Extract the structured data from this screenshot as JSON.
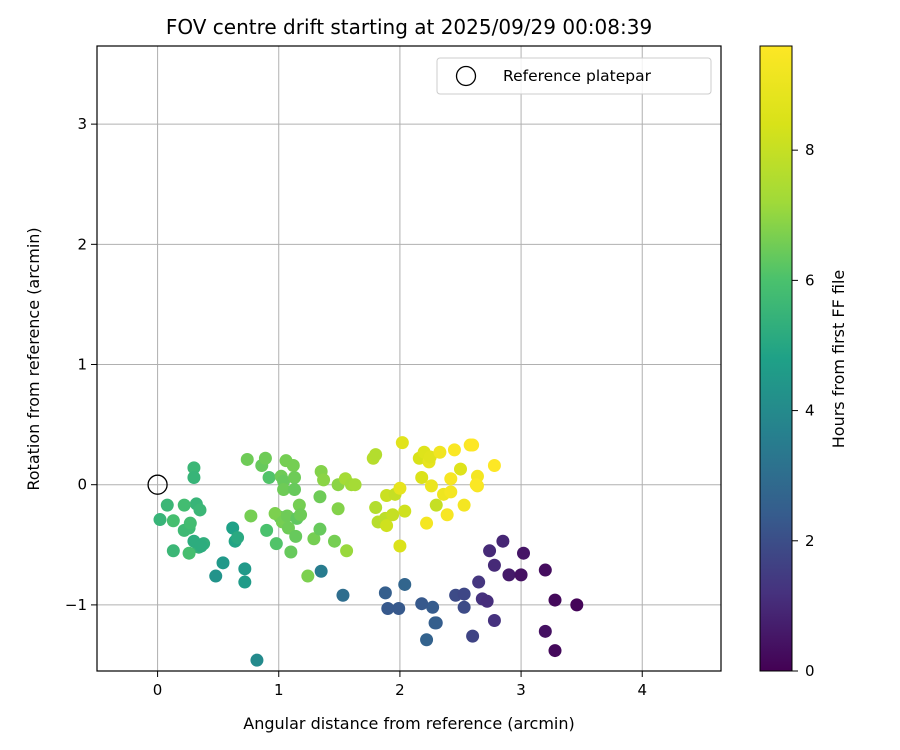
{
  "chart_data": {
    "type": "scatter",
    "title": "FOV centre drift starting at 2025/09/29 00:08:39",
    "xlabel": "Angular distance from reference (arcmin)",
    "ylabel": "Rotation from reference (arcmin)",
    "xlim": [
      -0.5,
      4.65
    ],
    "ylim": [
      -1.55,
      3.65
    ],
    "xticks": [
      0,
      1,
      2,
      3,
      4
    ],
    "yticks": [
      -1,
      0,
      1,
      2,
      3
    ],
    "xtick_labels": [
      "0",
      "1",
      "2",
      "3",
      "4"
    ],
    "ytick_labels": [
      "−1",
      "0",
      "1",
      "2",
      "3"
    ],
    "grid": true,
    "legend": {
      "position": "top-right",
      "entries": [
        "Reference platepar"
      ]
    },
    "reference_point": {
      "x": 0,
      "y": 0,
      "label": "Reference platepar"
    },
    "colorbar": {
      "label": "Hours from first FF file",
      "colormap": "viridis",
      "range": [
        0,
        9.6
      ],
      "ticks": [
        0,
        2,
        4,
        6,
        8
      ],
      "tick_labels": [
        "0",
        "2",
        "4",
        "6",
        "8"
      ]
    },
    "series": [
      {
        "color_by": "Hours from first FF file",
        "points": [
          {
            "x": 2.85,
            "y": -0.47,
            "c": 0.9
          },
          {
            "x": 2.74,
            "y": -0.55,
            "c": 1.0
          },
          {
            "x": 3.02,
            "y": -0.57,
            "c": 0.5
          },
          {
            "x": 2.78,
            "y": -0.67,
            "c": 1.0
          },
          {
            "x": 2.9,
            "y": -0.75,
            "c": 0.6
          },
          {
            "x": 3.0,
            "y": -0.75,
            "c": 0.4
          },
          {
            "x": 3.2,
            "y": -0.71,
            "c": 0.3
          },
          {
            "x": 2.65,
            "y": -0.81,
            "c": 1.3
          },
          {
            "x": 2.68,
            "y": -0.95,
            "c": 1.2
          },
          {
            "x": 2.72,
            "y": -0.97,
            "c": 1.1
          },
          {
            "x": 3.28,
            "y": -0.96,
            "c": 0.2
          },
          {
            "x": 3.46,
            "y": -1.0,
            "c": 0.1
          },
          {
            "x": 2.78,
            "y": -1.13,
            "c": 1.2
          },
          {
            "x": 3.2,
            "y": -1.22,
            "c": 0.4
          },
          {
            "x": 3.28,
            "y": -1.38,
            "c": 0.2
          },
          {
            "x": 2.6,
            "y": -1.26,
            "c": 1.7
          },
          {
            "x": 2.46,
            "y": -0.92,
            "c": 1.9
          },
          {
            "x": 2.53,
            "y": -0.91,
            "c": 1.8
          },
          {
            "x": 2.53,
            "y": -1.02,
            "c": 1.9
          },
          {
            "x": 2.3,
            "y": -1.15,
            "c": 2.4
          },
          {
            "x": 2.29,
            "y": -1.15,
            "c": 2.5
          },
          {
            "x": 2.27,
            "y": -1.02,
            "c": 2.4
          },
          {
            "x": 2.18,
            "y": -0.99,
            "c": 2.3
          },
          {
            "x": 2.22,
            "y": -1.29,
            "c": 2.6
          },
          {
            "x": 1.99,
            "y": -1.03,
            "c": 2.3
          },
          {
            "x": 1.9,
            "y": -1.03,
            "c": 2.3
          },
          {
            "x": 1.88,
            "y": -0.9,
            "c": 2.5
          },
          {
            "x": 2.04,
            "y": -0.83,
            "c": 2.7
          },
          {
            "x": 1.53,
            "y": -0.92,
            "c": 3.0
          },
          {
            "x": 1.35,
            "y": -0.72,
            "c": 3.5
          },
          {
            "x": 0.82,
            "y": -1.46,
            "c": 4.0
          },
          {
            "x": 0.72,
            "y": -0.7,
            "c": 4.5
          },
          {
            "x": 0.72,
            "y": -0.81,
            "c": 4.6
          },
          {
            "x": 0.64,
            "y": -0.47,
            "c": 4.9
          },
          {
            "x": 0.62,
            "y": -0.36,
            "c": 4.8
          },
          {
            "x": 0.54,
            "y": -0.65,
            "c": 4.5
          },
          {
            "x": 0.48,
            "y": -0.76,
            "c": 4.3
          },
          {
            "x": 0.66,
            "y": -0.44,
            "c": 5.1
          },
          {
            "x": 0.38,
            "y": -0.49,
            "c": 5.3
          },
          {
            "x": 0.34,
            "y": -0.52,
            "c": 5.4
          },
          {
            "x": 0.3,
            "y": -0.47,
            "c": 5.2
          },
          {
            "x": 0.32,
            "y": -0.16,
            "c": 5.5
          },
          {
            "x": 0.35,
            "y": -0.21,
            "c": 5.6
          },
          {
            "x": 0.3,
            "y": 0.14,
            "c": 5.6
          },
          {
            "x": 0.3,
            "y": 0.06,
            "c": 5.5
          },
          {
            "x": 0.22,
            "y": -0.17,
            "c": 5.8
          },
          {
            "x": 0.26,
            "y": -0.36,
            "c": 5.7
          },
          {
            "x": 0.22,
            "y": -0.38,
            "c": 5.7
          },
          {
            "x": 0.27,
            "y": -0.32,
            "c": 5.8
          },
          {
            "x": 0.13,
            "y": -0.3,
            "c": 5.9
          },
          {
            "x": 0.08,
            "y": -0.17,
            "c": 5.6
          },
          {
            "x": 0.02,
            "y": -0.29,
            "c": 5.5
          },
          {
            "x": 0.13,
            "y": -0.55,
            "c": 5.6
          },
          {
            "x": 0.26,
            "y": -0.57,
            "c": 5.9
          },
          {
            "x": 0.36,
            "y": -0.51,
            "c": 5.2
          },
          {
            "x": 0.77,
            "y": -0.26,
            "c": 6.6
          },
          {
            "x": 0.74,
            "y": 0.21,
            "c": 6.5
          },
          {
            "x": 0.86,
            "y": 0.16,
            "c": 6.4
          },
          {
            "x": 0.89,
            "y": 0.22,
            "c": 6.5
          },
          {
            "x": 0.92,
            "y": 0.06,
            "c": 6.1
          },
          {
            "x": 0.9,
            "y": -0.38,
            "c": 6.0
          },
          {
            "x": 0.98,
            "y": -0.49,
            "c": 6.1
          },
          {
            "x": 1.01,
            "y": -0.27,
            "c": 6.3
          },
          {
            "x": 0.97,
            "y": -0.24,
            "c": 6.7
          },
          {
            "x": 1.03,
            "y": -0.31,
            "c": 6.6
          },
          {
            "x": 1.07,
            "y": -0.26,
            "c": 6.5
          },
          {
            "x": 1.08,
            "y": -0.36,
            "c": 6.5
          },
          {
            "x": 1.1,
            "y": -0.56,
            "c": 6.4
          },
          {
            "x": 1.02,
            "y": 0.07,
            "c": 6.5
          },
          {
            "x": 1.04,
            "y": 0.03,
            "c": 6.4
          },
          {
            "x": 1.04,
            "y": -0.04,
            "c": 6.5
          },
          {
            "x": 1.06,
            "y": 0.2,
            "c": 6.6
          },
          {
            "x": 1.12,
            "y": 0.16,
            "c": 6.6
          },
          {
            "x": 1.13,
            "y": 0.06,
            "c": 6.5
          },
          {
            "x": 1.13,
            "y": -0.04,
            "c": 6.4
          },
          {
            "x": 1.15,
            "y": -0.28,
            "c": 6.3
          },
          {
            "x": 1.17,
            "y": -0.17,
            "c": 6.6
          },
          {
            "x": 1.18,
            "y": -0.25,
            "c": 6.5
          },
          {
            "x": 1.14,
            "y": -0.43,
            "c": 6.4
          },
          {
            "x": 1.24,
            "y": -0.76,
            "c": 6.7
          },
          {
            "x": 1.29,
            "y": -0.45,
            "c": 6.6
          },
          {
            "x": 1.34,
            "y": -0.37,
            "c": 6.4
          },
          {
            "x": 1.34,
            "y": -0.1,
            "c": 6.5
          },
          {
            "x": 1.35,
            "y": 0.11,
            "c": 6.8
          },
          {
            "x": 1.37,
            "y": 0.04,
            "c": 6.9
          },
          {
            "x": 1.46,
            "y": -0.47,
            "c": 6.6
          },
          {
            "x": 1.49,
            "y": -0.2,
            "c": 6.8
          },
          {
            "x": 1.49,
            "y": -0.0,
            "c": 6.9
          },
          {
            "x": 1.56,
            "y": -0.55,
            "c": 7.1
          },
          {
            "x": 1.55,
            "y": 0.05,
            "c": 7.3
          },
          {
            "x": 1.6,
            "y": 0.0,
            "c": 7.2
          },
          {
            "x": 1.63,
            "y": 0.0,
            "c": 7.3
          },
          {
            "x": 1.78,
            "y": 0.22,
            "c": 7.7
          },
          {
            "x": 1.8,
            "y": 0.25,
            "c": 7.6
          },
          {
            "x": 1.8,
            "y": -0.19,
            "c": 7.6
          },
          {
            "x": 1.82,
            "y": -0.31,
            "c": 7.7
          },
          {
            "x": 1.88,
            "y": -0.28,
            "c": 7.8
          },
          {
            "x": 1.89,
            "y": -0.34,
            "c": 8.2
          },
          {
            "x": 1.89,
            "y": -0.09,
            "c": 8.1
          },
          {
            "x": 1.94,
            "y": -0.25,
            "c": 8.0
          },
          {
            "x": 1.96,
            "y": -0.08,
            "c": 8.0
          },
          {
            "x": 2.0,
            "y": -0.51,
            "c": 8.5
          },
          {
            "x": 2.02,
            "y": 0.35,
            "c": 8.7
          },
          {
            "x": 2.0,
            "y": -0.03,
            "c": 8.9
          },
          {
            "x": 2.04,
            "y": -0.22,
            "c": 8.2
          },
          {
            "x": 2.16,
            "y": 0.22,
            "c": 8.4
          },
          {
            "x": 2.18,
            "y": 0.06,
            "c": 8.5
          },
          {
            "x": 2.2,
            "y": 0.27,
            "c": 8.6
          },
          {
            "x": 2.22,
            "y": -0.32,
            "c": 9.3
          },
          {
            "x": 2.24,
            "y": 0.19,
            "c": 8.9
          },
          {
            "x": 2.25,
            "y": 0.23,
            "c": 8.7
          },
          {
            "x": 2.26,
            "y": -0.01,
            "c": 9.0
          },
          {
            "x": 2.3,
            "y": -0.17,
            "c": 8.0
          },
          {
            "x": 2.33,
            "y": 0.27,
            "c": 9.2
          },
          {
            "x": 2.36,
            "y": -0.08,
            "c": 9.1
          },
          {
            "x": 2.39,
            "y": -0.25,
            "c": 9.4
          },
          {
            "x": 2.42,
            "y": -0.06,
            "c": 9.3
          },
          {
            "x": 2.42,
            "y": 0.05,
            "c": 9.4
          },
          {
            "x": 2.45,
            "y": 0.29,
            "c": 9.5
          },
          {
            "x": 2.5,
            "y": 0.13,
            "c": 8.6
          },
          {
            "x": 2.53,
            "y": -0.17,
            "c": 9.3
          },
          {
            "x": 2.58,
            "y": 0.33,
            "c": 9.5
          },
          {
            "x": 2.6,
            "y": 0.33,
            "c": 9.6
          },
          {
            "x": 2.64,
            "y": 0.07,
            "c": 9.3
          },
          {
            "x": 2.64,
            "y": -0.01,
            "c": 9.4
          },
          {
            "x": 2.63,
            "y": 0.0,
            "c": 9.5
          },
          {
            "x": 2.78,
            "y": 0.16,
            "c": 9.6
          }
        ]
      }
    ]
  }
}
